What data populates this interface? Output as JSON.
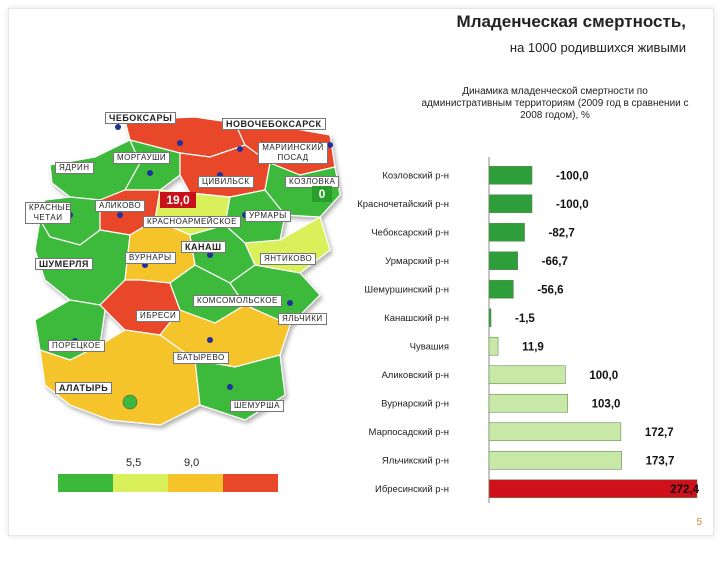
{
  "slide": {
    "title": "Младенческая смертность,",
    "subtitle": "на 1000 родившихся живыми",
    "page_number": "5"
  },
  "map": {
    "legend_values": [
      "5,5",
      "9,0"
    ],
    "legend_colors": [
      "#3cb93a",
      "#d9f05a",
      "#f5c32a",
      "#e8472a"
    ],
    "highlight_values": {
      "tsivilsk": "19,0",
      "kozlovka": "0"
    },
    "labels": {
      "cheboksary": "ЧЕБОКСАРЫ",
      "novocheboksarsk": "НОВОЧЕБОКСАРСК",
      "mariinsky_posad": "МАРИИНСКИЙ ПОСАД",
      "yadrin": "ЯДРИН",
      "morgaushi": "МОРГАУШИ",
      "tsivilsk": "ЦИВИЛЬСК",
      "kozlovka": "КОЗЛОВКА",
      "krasnye_chetai": "КРАСНЫЕ ЧЕТАИ",
      "alikovo": "АЛИКОВО",
      "krasnoarmeyskoe": "КРАСНОАРМЕЙСКОЕ",
      "urmary": "УРМАРЫ",
      "kanash": "КАНАШ",
      "shumerlya": "ШУМЕРЛЯ",
      "vurnary": "ВУРНАРЫ",
      "yantikovo": "ЯНТИКОВО",
      "komsomolskoe": "КОМСОМОЛЬСКОЕ",
      "ibresi": "ИБРЕСИ",
      "yalchiki": "ЯЛЬЧИКИ",
      "poretskoe": "ПОРЕЦКОЕ",
      "batyrevo": "БАТЫРЕВО",
      "alatyr": "АЛАТЫРЬ",
      "shemursha": "ШЕМУРША"
    }
  },
  "chart_data": {
    "type": "bar",
    "orientation": "horizontal",
    "title": "Динамика младенческой смертности по административным территориям (2009 год в сравнении с 2008 годом), %",
    "categories": [
      "Козловский р-н",
      "Красночетайский р-н",
      "Чебоксарский р-н",
      "Урмарский р-н",
      "Шемуршинский р-н",
      "Канашский р-н",
      "Чувашия",
      "Аликовский р-н",
      "Вурнарский р-н",
      "Марпосадский р-н",
      "Яльчикский р-н",
      "Ибресинский р-н"
    ],
    "values": [
      -100.0,
      -100.0,
      -82.7,
      -66.7,
      -56.6,
      -1.5,
      11.9,
      100.0,
      103.0,
      172.7,
      173.7,
      272.4
    ],
    "value_labels": [
      "-100,0",
      "-100,0",
      "-82,7",
      "-66,7",
      "-56,6",
      "-1,5",
      "11,9",
      "100,0",
      "103,0",
      "172,7",
      "173,7",
      "272,4"
    ],
    "xlim": [
      -100,
      272.4
    ],
    "grid": false,
    "legend": "none",
    "colors": {
      "negative": "#2e9e3a",
      "positive": "#c8e8a8",
      "max": "#d0101a"
    }
  }
}
